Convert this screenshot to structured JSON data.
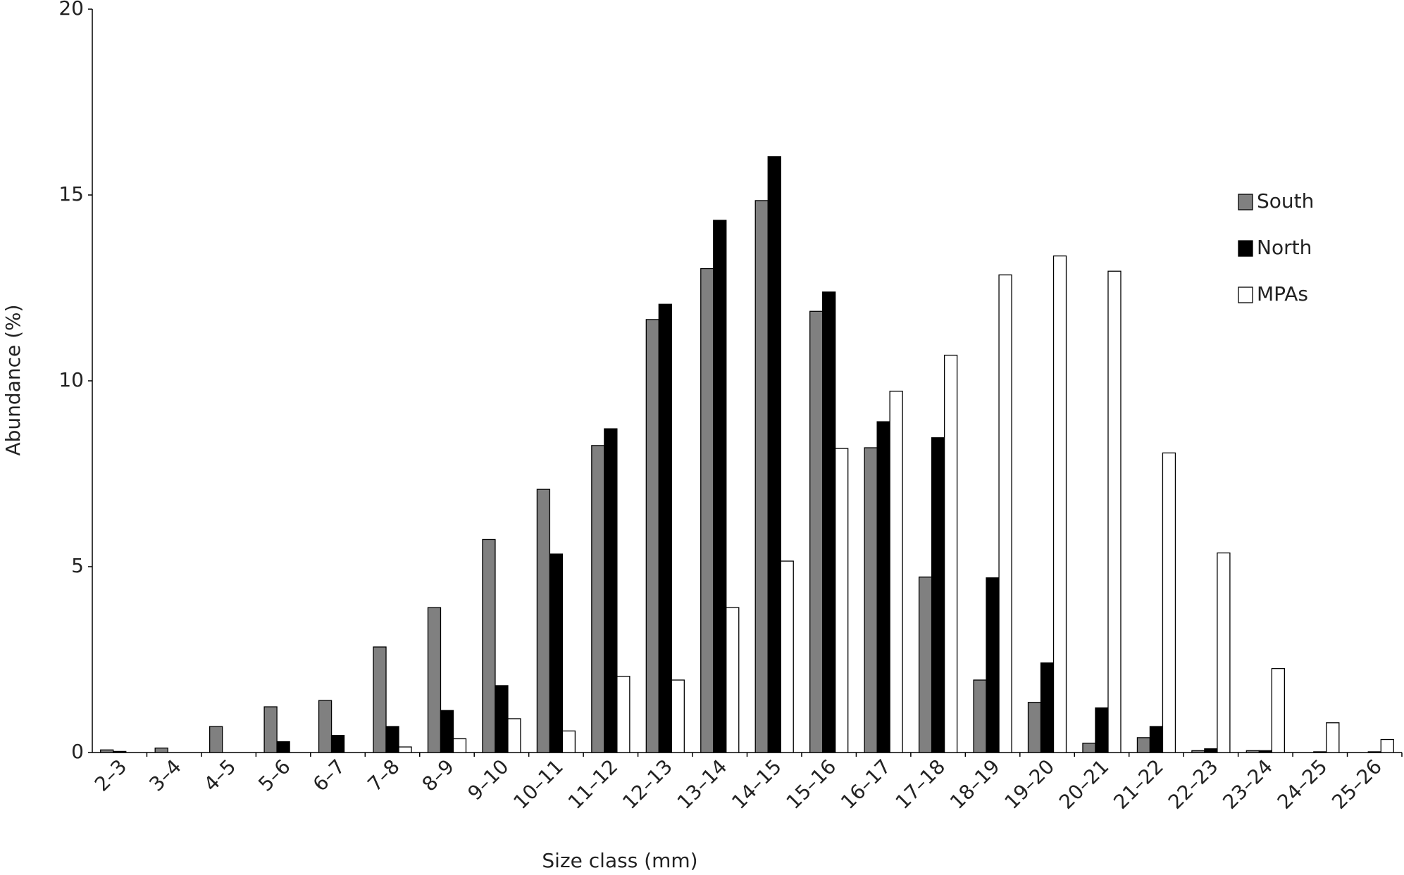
{
  "chart_data": {
    "type": "bar",
    "x_label": "Size class (mm)",
    "y_label": "Abundance (%)",
    "categories": [
      "2–3",
      "3–4",
      "4–5",
      "5–6",
      "6–7",
      "7–8",
      "8–9",
      "9–10",
      "10–11",
      "11–12",
      "12–13",
      "13–14",
      "14–15",
      "15–16",
      "16–17",
      "17–18",
      "18–19",
      "19–20",
      "20–21",
      "21–22",
      "22–23",
      "23–24",
      "24–25",
      "25–26"
    ],
    "series": [
      {
        "name": "South",
        "color": "#808080",
        "values": [
          0.07,
          0.12,
          0.7,
          1.23,
          1.4,
          2.84,
          3.9,
          5.73,
          7.08,
          8.26,
          11.65,
          13.02,
          14.85,
          11.87,
          8.2,
          4.72,
          1.95,
          1.35,
          0.25,
          0.4,
          0.05,
          0.05,
          0,
          0
        ]
      },
      {
        "name": "North",
        "color": "#000000",
        "values": [
          0.03,
          0,
          0,
          0.29,
          0.46,
          0.7,
          1.13,
          1.8,
          5.34,
          8.71,
          12.06,
          14.32,
          16.03,
          12.39,
          8.9,
          8.47,
          4.7,
          2.41,
          1.2,
          0.7,
          0.1,
          0.05,
          0.02,
          0.02
        ]
      },
      {
        "name": "MPAs",
        "color": "#ffffff",
        "values": [
          0,
          0,
          0,
          0,
          0,
          0.15,
          0.37,
          0.91,
          0.58,
          2.05,
          1.95,
          3.9,
          5.15,
          8.18,
          9.72,
          10.69,
          12.85,
          13.36,
          12.95,
          8.06,
          5.37,
          2.26,
          0.8,
          0.35
        ]
      }
    ],
    "ylim": [
      0,
      20
    ],
    "yticks": [
      0,
      5,
      10,
      15,
      20
    ],
    "grid": false,
    "legend_position": "right"
  }
}
